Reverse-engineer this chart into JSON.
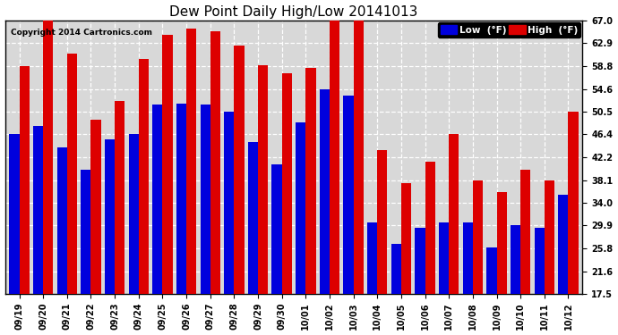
{
  "title": "Dew Point Daily High/Low 20141013",
  "copyright": "Copyright 2014 Cartronics.com",
  "dates": [
    "09/19",
    "09/20",
    "09/21",
    "09/22",
    "09/23",
    "09/24",
    "09/25",
    "09/26",
    "09/27",
    "09/28",
    "09/29",
    "09/30",
    "10/01",
    "10/02",
    "10/03",
    "10/04",
    "10/05",
    "10/06",
    "10/07",
    "10/08",
    "10/09",
    "10/10",
    "10/11",
    "10/12"
  ],
  "low_values": [
    46.4,
    48.0,
    44.0,
    40.0,
    45.5,
    46.4,
    51.8,
    52.0,
    51.8,
    50.5,
    45.0,
    41.0,
    48.5,
    54.6,
    53.5,
    30.5,
    26.5,
    29.5,
    30.5,
    30.5,
    26.0,
    30.0,
    29.5,
    35.5
  ],
  "high_values": [
    58.8,
    67.0,
    61.0,
    49.0,
    52.5,
    60.0,
    64.5,
    65.5,
    65.0,
    62.5,
    59.0,
    57.5,
    58.5,
    67.0,
    67.0,
    43.5,
    37.5,
    41.5,
    46.5,
    38.0,
    36.0,
    40.0,
    38.0,
    50.5
  ],
  "ylim_min": 17.5,
  "ylim_max": 67.0,
  "yticks": [
    17.5,
    21.6,
    25.8,
    29.9,
    34.0,
    38.1,
    42.2,
    46.4,
    50.5,
    54.6,
    58.8,
    62.9,
    67.0
  ],
  "low_color": "#0000dd",
  "high_color": "#dd0000",
  "bg_color": "#ffffff",
  "plot_bg_color": "#d8d8d8",
  "grid_color": "#ffffff",
  "bar_width": 0.42,
  "title_fontsize": 11,
  "tick_fontsize": 7,
  "legend_low_label": "Low  (°F)",
  "legend_high_label": "High  (°F)"
}
